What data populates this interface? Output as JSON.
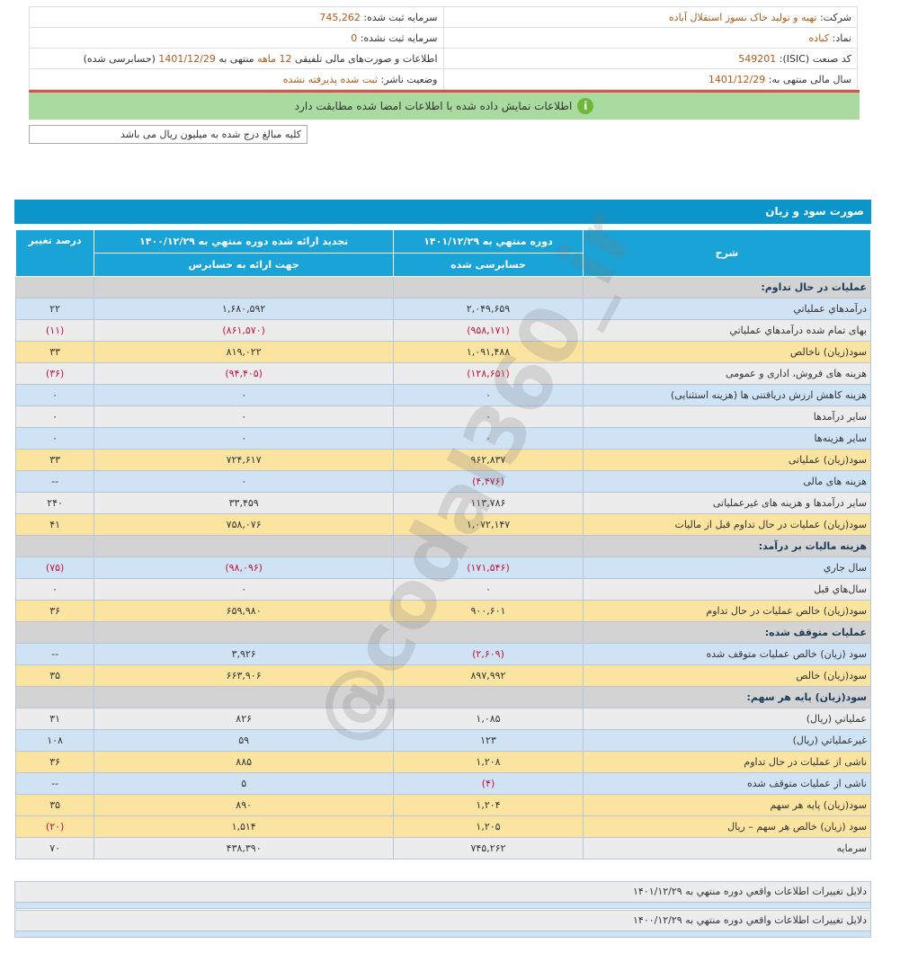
{
  "info": {
    "company_label": "شرکت:",
    "company": "تهیه و تولید خاک نسوز استقلال آباده",
    "registered_capital_label": "سرمایه ثبت شده:",
    "registered_capital": "745,262",
    "symbol_label": "نماد:",
    "symbol": "کباده",
    "unregistered_capital_label": "سرمایه ثبت نشده:",
    "unregistered_capital": "0",
    "isic_label": "کد صنعت (ISIC):",
    "isic": "549201",
    "statements_label": "اطلاعات و صورت‌های مالی تلفیقی",
    "statements_period": "12 ماهه",
    "statements_mid": "منتهی به",
    "statements_date": "1401/12/29",
    "statements_status": "(حسابرسی شده)",
    "fiscal_year_label": "سال مالی منتهی به:",
    "fiscal_year": "1401/12/29",
    "publisher_status_label": "وضعیت ناشر:",
    "publisher_status": "ثبت شده پذیرفته نشده"
  },
  "notice": {
    "icon": "info-icon",
    "text": "اطلاعات نمایش داده شده با اطلاعات امضا شده مطابقت دارد"
  },
  "unit_note": "کلیه مبالغ درج شده به میلیون ریال می باشد",
  "section_title": "صورت سود و زیان",
  "table": {
    "headers": {
      "desc": "شرح",
      "current_top": "دوره منتهي به ۱۴۰۱/۱۲/۲۹",
      "current_sub": "حسابرسی شده",
      "prior_top": "تجدید ارائه شده دوره منتهي به ۱۴۰۰/۱۲/۲۹",
      "prior_sub": "جهت ارائه به حسابرس",
      "change": "درصد تغییر"
    },
    "rows": [
      {
        "type": "h",
        "desc": "عملیات در حال تداوم:",
        "cur": "",
        "prior": "",
        "chg": ""
      },
      {
        "type": "b",
        "desc": "درآمدهاي عملياتي",
        "cur": "۲,۰۴۹,۶۵۹",
        "prior": "۱,۶۸۰,۵۹۲",
        "chg": "۲۲"
      },
      {
        "type": "g",
        "desc": "بهاى تمام شده درآمدهاي عملياتي",
        "cur": "(۹۵۸,۱۷۱)",
        "prior": "(۸۶۱,۵۷۰)",
        "chg": "(۱۱)"
      },
      {
        "type": "y",
        "desc": "سود(زيان) ناخالص",
        "cur": "۱,۰۹۱,۴۸۸",
        "prior": "۸۱۹,۰۲۲",
        "chg": "۳۳"
      },
      {
        "type": "g",
        "desc": "هزينه هاى فروش، ادارى و عمومى",
        "cur": "(۱۲۸,۶۵۱)",
        "prior": "(۹۴,۴۰۵)",
        "chg": "(۳۶)"
      },
      {
        "type": "b",
        "desc": "هزینه کاهش ارزش دریافتنی ها (هزینه استثنایی)",
        "cur": "۰",
        "prior": "۰",
        "chg": "۰"
      },
      {
        "type": "g",
        "desc": "ساير درآمدها",
        "cur": "۰",
        "prior": "۰",
        "chg": "۰"
      },
      {
        "type": "b",
        "desc": "سایر هزینه‌ها",
        "cur": "۰",
        "prior": "۰",
        "chg": "۰"
      },
      {
        "type": "y",
        "desc": "سود(زيان) عملياتى",
        "cur": "۹۶۲,۸۳۷",
        "prior": "۷۲۴,۶۱۷",
        "chg": "۳۳"
      },
      {
        "type": "b",
        "desc": "هزينه هاى مالى",
        "cur": "(۴,۴۷۶)",
        "prior": "۰",
        "chg": "--"
      },
      {
        "type": "g",
        "desc": "ساير درآمدها و هزينه هاى غيرعملياتى",
        "cur": "۱۱۳,۷۸۶",
        "prior": "۳۳,۴۵۹",
        "chg": "۲۴۰"
      },
      {
        "type": "y",
        "desc": "سود(زيان) عمليات در حال تداوم قبل از ماليات",
        "cur": "۱,۰۷۲,۱۴۷",
        "prior": "۷۵۸,۰۷۶",
        "chg": "۴۱"
      },
      {
        "type": "h",
        "desc": "هزینه مالیات بر درآمد:",
        "cur": "",
        "prior": "",
        "chg": ""
      },
      {
        "type": "b",
        "desc": "سال جاري",
        "cur": "(۱۷۱,۵۴۶)",
        "prior": "(۹۸,۰۹۶)",
        "chg": "(۷۵)"
      },
      {
        "type": "g",
        "desc": "سال‌هاي قبل",
        "cur": "۰",
        "prior": "۰",
        "chg": "۰"
      },
      {
        "type": "y",
        "desc": "سود(زيان) خالص عمليات در حال تداوم",
        "cur": "۹۰۰,۶۰۱",
        "prior": "۶۵۹,۹۸۰",
        "chg": "۳۶"
      },
      {
        "type": "h",
        "desc": "عملیات متوقف شده:",
        "cur": "",
        "prior": "",
        "chg": ""
      },
      {
        "type": "b",
        "desc": "سود (زيان) خالص عمليات متوقف شده",
        "cur": "(۲,۶۰۹)",
        "prior": "۳,۹۲۶",
        "chg": "--"
      },
      {
        "type": "y",
        "desc": "سود(زيان) خالص",
        "cur": "۸۹۷,۹۹۲",
        "prior": "۶۶۳,۹۰۶",
        "chg": "۳۵"
      },
      {
        "type": "h",
        "desc": "سود(زيان) پايه هر سهم:",
        "cur": "",
        "prior": "",
        "chg": ""
      },
      {
        "type": "g",
        "desc": "عملياتي (ريال)",
        "cur": "۱,۰۸۵",
        "prior": "۸۲۶",
        "chg": "۳۱"
      },
      {
        "type": "b",
        "desc": "غيرعملياتي (ريال)",
        "cur": "۱۲۳",
        "prior": "۵۹",
        "chg": "۱۰۸"
      },
      {
        "type": "y",
        "desc": "ناشی از عملیات در حال تداوم",
        "cur": "۱,۲۰۸",
        "prior": "۸۸۵",
        "chg": "۳۶"
      },
      {
        "type": "b",
        "desc": "ناشی از عملیات متوقف شده",
        "cur": "(۴)",
        "prior": "۵",
        "chg": "--"
      },
      {
        "type": "y",
        "desc": "سود(زيان) پايه هر سهم",
        "cur": "۱,۲۰۴",
        "prior": "۸۹۰",
        "chg": "۳۵"
      },
      {
        "type": "y",
        "desc": "سود (زيان) خالص هر سهم – ريال",
        "cur": "۱,۲۰۵",
        "prior": "۱,۵۱۴",
        "chg": "(۲۰)"
      },
      {
        "type": "g",
        "desc": "سرمایه",
        "cur": "۷۴۵,۲۶۲",
        "prior": "۴۳۸,۳۹۰",
        "chg": "۷۰"
      }
    ]
  },
  "reasons": [
    "دلایل تغییرات اطلاعات واقعي دوره منتهي به ۱۴۰۱/۱۲/۲۹",
    "دلایل تغییرات اطلاعات واقعي دوره منتهي به ۱۴۰۰/۱۲/۲۹"
  ],
  "watermark": "@codal360_ir",
  "colors": {
    "header_blue": "#1aa3d6",
    "title_blue": "#0c95c8",
    "row_blue": "#cfe3f5",
    "row_yellow": "#fbe3a0",
    "row_gray": "#ececec",
    "negative": "#c0143c",
    "notice_green": "#a9dba0"
  }
}
